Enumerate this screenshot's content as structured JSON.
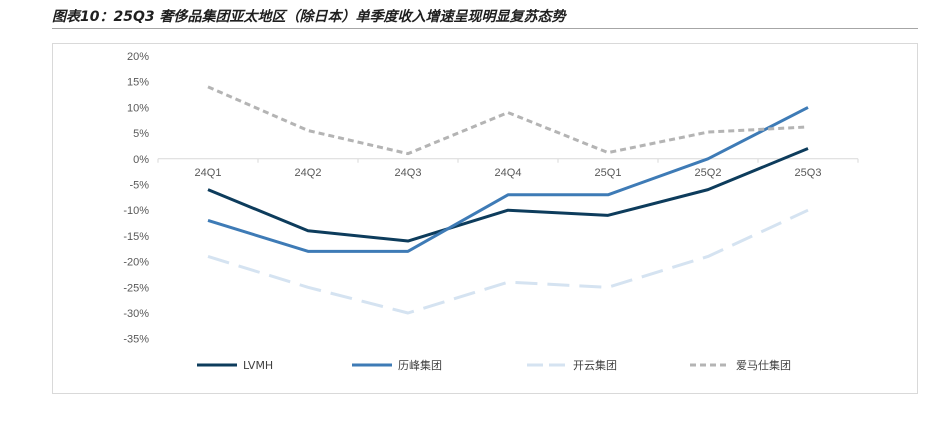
{
  "title": "图表10：25Q3 奢侈品集团亚太地区（除日本）单季度收入增速呈现明显复苏态势",
  "chart_data": {
    "type": "line",
    "categories": [
      "24Q1",
      "24Q2",
      "24Q3",
      "24Q4",
      "25Q1",
      "25Q2",
      "25Q3"
    ],
    "y_ticks": [
      "20%",
      "15%",
      "10%",
      "5%",
      "0%",
      "-5%",
      "-10%",
      "-15%",
      "-20%",
      "-25%",
      "-30%",
      "-35%"
    ],
    "ylim": [
      -35,
      20
    ],
    "unit": "%",
    "legend_position": "bottom",
    "series": [
      {
        "name": "LVMH",
        "values": [
          -6,
          -14,
          -16,
          -10,
          -11,
          -6,
          2
        ],
        "color": "#0d3c5c",
        "dash": "solid"
      },
      {
        "name": "历峰集团",
        "values": [
          -12,
          -18,
          -18,
          -7,
          -7,
          0,
          10
        ],
        "color": "#3e7bb6",
        "dash": "solid"
      },
      {
        "name": "开云集团",
        "values": [
          -19,
          -25,
          -30,
          -24,
          -25,
          -19,
          -10
        ],
        "color": "#d5e3f1",
        "dash": "long-dash"
      },
      {
        "name": "爱马仕集团",
        "values": [
          14,
          5.5,
          1,
          9,
          1.2,
          5.2,
          6.2
        ],
        "color": "#b4b4b4",
        "dash": "short-dash"
      }
    ]
  }
}
